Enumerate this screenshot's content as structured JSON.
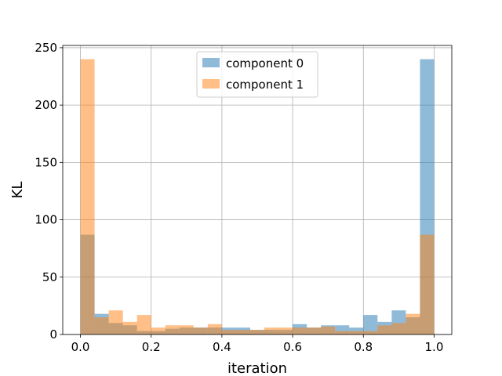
{
  "chart_data": {
    "type": "bar",
    "subtype": "overlapping histogram",
    "xlabel": "iteration",
    "ylabel": "KL",
    "xlim": [
      -0.05,
      1.05
    ],
    "ylim": [
      0,
      252
    ],
    "xticks": [
      "0.0",
      "0.2",
      "0.4",
      "0.6",
      "0.8",
      "1.0"
    ],
    "yticks": [
      "0",
      "50",
      "100",
      "150",
      "200",
      "250"
    ],
    "grid": true,
    "legend_position": "top-center",
    "bins": {
      "start": 0.0,
      "end": 1.0,
      "count": 25,
      "edges": [
        0.0,
        0.04,
        0.08,
        0.12,
        0.16,
        0.2,
        0.24,
        0.28,
        0.32,
        0.36,
        0.4,
        0.44,
        0.48,
        0.52,
        0.56,
        0.6,
        0.64,
        0.68,
        0.72,
        0.76,
        0.8,
        0.84,
        0.88,
        0.92,
        0.96,
        1.0
      ]
    },
    "series": [
      {
        "name": "component 0",
        "color": "#1f77b4",
        "alpha": 0.5,
        "values": [
          87,
          18,
          10,
          8,
          3,
          3,
          5,
          6,
          6,
          6,
          6,
          6,
          4,
          4,
          4,
          9,
          6,
          8,
          8,
          6,
          17,
          11,
          21,
          15,
          240
        ]
      },
      {
        "name": "component 1",
        "color": "#ff7f0e",
        "alpha": 0.5,
        "values": [
          240,
          15,
          21,
          11,
          17,
          6,
          8,
          8,
          6,
          9,
          4,
          4,
          4,
          6,
          6,
          6,
          6,
          7,
          3,
          3,
          3,
          8,
          10,
          18,
          87
        ]
      }
    ]
  }
}
